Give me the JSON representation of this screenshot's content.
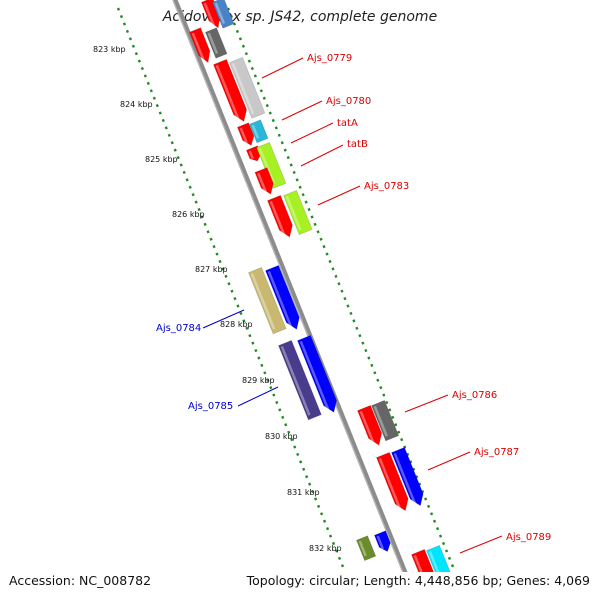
{
  "header": {
    "title": "Acidovorax sp. JS42, complete genome"
  },
  "footer": {
    "accession": "Accession: NC_008782",
    "stats": "Topology: circular; Length: 4,448,856 bp; Genes: 4,069"
  },
  "ruler": {
    "unit": "kbp",
    "ticks": [
      "823 kbp",
      "824 kbp",
      "825 kbp",
      "826 kbp",
      "827 kbp",
      "828 kbp",
      "829 kbp",
      "830 kbp",
      "831 kbp",
      "832 kbp"
    ]
  },
  "colors": {
    "forward_label": "#dd0000",
    "reverse_label": "#0000cc",
    "cds": "#ff0000",
    "backbone": "#8c8c8c",
    "dots": "#228b22"
  },
  "labels": [
    {
      "text": "Ajs_0779",
      "strand": "forward"
    },
    {
      "text": "Ajs_0780",
      "strand": "forward"
    },
    {
      "text": "tatA",
      "strand": "forward"
    },
    {
      "text": "tatB",
      "strand": "forward"
    },
    {
      "text": "Ajs_0783",
      "strand": "forward"
    },
    {
      "text": "Ajs_0784",
      "strand": "reverse"
    },
    {
      "text": "Ajs_0785",
      "strand": "reverse"
    },
    {
      "text": "Ajs_0786",
      "strand": "forward"
    },
    {
      "text": "Ajs_0787",
      "strand": "forward"
    },
    {
      "text": "Ajs_0789",
      "strand": "forward"
    }
  ]
}
